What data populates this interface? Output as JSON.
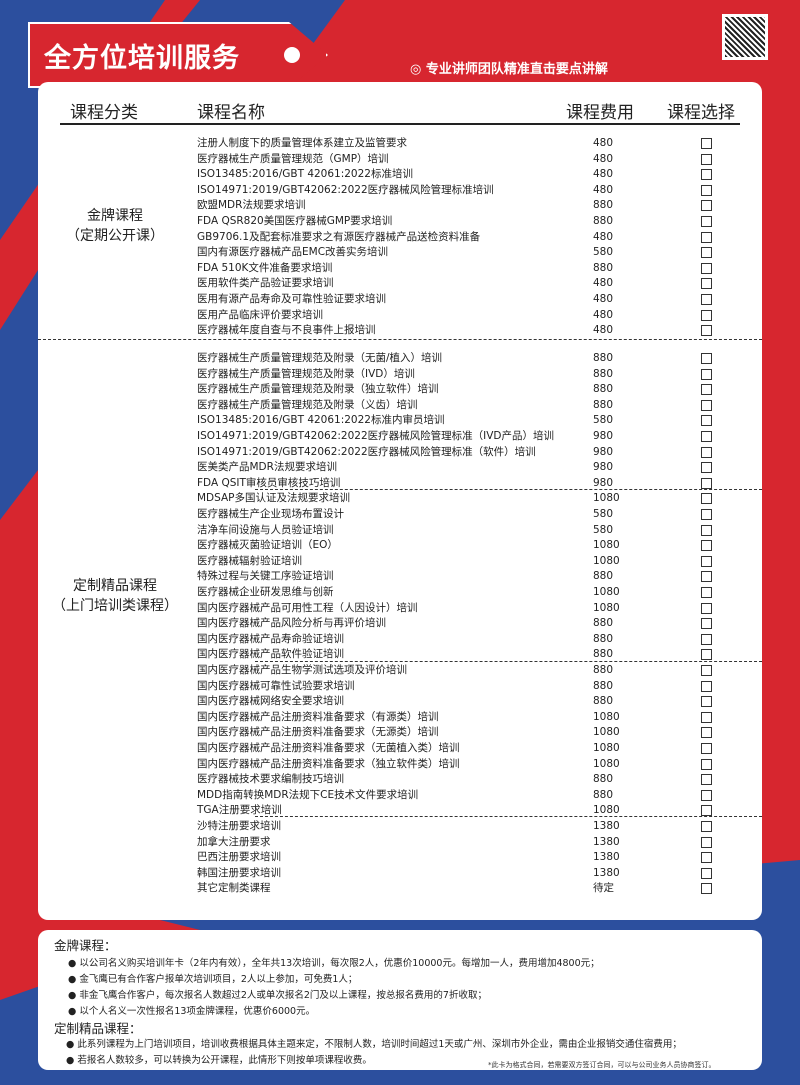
{
  "header": {
    "title": "全方位培训服务",
    "slogan": "◎ 专业讲师团队精准直击要点讲解",
    "qr_code": "qr-code"
  },
  "columns": {
    "category": "课程分类",
    "name": "课程名称",
    "fee": "课程费用",
    "select": "课程选择"
  },
  "colors": {
    "red": "#d7262f",
    "blue": "#2c4f9e"
  },
  "sections": [
    {
      "category": "金牌课程",
      "category_sub": "（定期公开课）",
      "courses": [
        {
          "name": "注册人制度下的质量管理体系建立及监管要求",
          "fee": "480"
        },
        {
          "name": "医疗器械生产质量管理规范（GMP）培训",
          "fee": "480"
        },
        {
          "name": "ISO13485:2016/GBT 42061:2022标准培训",
          "fee": "480"
        },
        {
          "name": "ISO14971:2019/GBT42062:2022医疗器械风险管理标准培训",
          "fee": "480"
        },
        {
          "name": "欧盟MDR法规要求培训",
          "fee": "880"
        },
        {
          "name": "FDA QSR820美国医疗器械GMP要求培训",
          "fee": "880"
        },
        {
          "name": "GB9706.1及配套标准要求之有源医疗器械产品送检资料准备",
          "fee": "480"
        },
        {
          "name": "国内有源医疗器械产品EMC改善实务培训",
          "fee": "580"
        },
        {
          "name": "FDA 510K文件准备要求培训",
          "fee": "880"
        },
        {
          "name": "医用软件类产品验证要求培训",
          "fee": "480"
        },
        {
          "name": "医用有源产品寿命及可靠性验证要求培训",
          "fee": "480"
        },
        {
          "name": "医用产品临床评价要求培训",
          "fee": "480"
        },
        {
          "name": "医疗器械年度自查与不良事件上报培训",
          "fee": "480"
        }
      ]
    },
    {
      "category": "定制精品课程",
      "category_sub": "（上门培训类课程）",
      "courses": [
        {
          "name": "医疗器械生产质量管理规范及附录（无菌/植入）培训",
          "fee": "880"
        },
        {
          "name": "医疗器械生产质量管理规范及附录（IVD）培训",
          "fee": "880"
        },
        {
          "name": "医疗器械生产质量管理规范及附录（独立软件）培训",
          "fee": "880"
        },
        {
          "name": "医疗器械生产质量管理规范及附录（义齿）培训",
          "fee": "880"
        },
        {
          "name": "ISO13485:2016/GBT 42061:2022标准内审员培训",
          "fee": "580"
        },
        {
          "name": "ISO14971:2019/GBT42062:2022医疗器械风险管理标准（IVD产品）培训",
          "fee": "980"
        },
        {
          "name": "ISO14971:2019/GBT42062:2022医疗器械风险管理标准（软件）培训",
          "fee": "980"
        },
        {
          "name": "医美类产品MDR法规要求培训",
          "fee": "980"
        },
        {
          "name": "FDA QSIT审核员审核技巧培训",
          "fee": "980"
        },
        {
          "name": "MDSAP多国认证及法规要求培训",
          "fee": "1080"
        },
        {
          "name": "医疗器械生产企业现场布置设计",
          "fee": "580"
        },
        {
          "name": "洁净车间设施与人员验证培训",
          "fee": "580"
        },
        {
          "name": "医疗器械灭菌验证培训（EO）",
          "fee": "1080"
        },
        {
          "name": "医疗器械辐射验证培训",
          "fee": "1080"
        },
        {
          "name": "特殊过程与关键工序验证培训",
          "fee": "880"
        },
        {
          "name": "医疗器械企业研发思维与创新",
          "fee": "1080"
        },
        {
          "name": "国内医疗器械产品可用性工程（人因设计）培训",
          "fee": "1080"
        },
        {
          "name": "国内医疗器械产品风险分析与再评价培训",
          "fee": "880"
        },
        {
          "name": "国内医疗器械产品寿命验证培训",
          "fee": "880"
        },
        {
          "name": "国内医疗器械产品软件验证培训",
          "fee": "880"
        },
        {
          "name": "国内医疗器械产品生物学测试选项及评价培训",
          "fee": "880"
        },
        {
          "name": "国内医疗器械可靠性试验要求培训",
          "fee": "880"
        },
        {
          "name": "国内医疗器械网络安全要求培训",
          "fee": "880"
        },
        {
          "name": "国内医疗器械产品注册资料准备要求（有源类）培训",
          "fee": "1080"
        },
        {
          "name": "国内医疗器械产品注册资料准备要求（无源类）培训",
          "fee": "1080"
        },
        {
          "name": "国内医疗器械产品注册资料准备要求（无菌植入类）培训",
          "fee": "1080"
        },
        {
          "name": "国内医疗器械产品注册资料准备要求（独立软件类）培训",
          "fee": "1080"
        },
        {
          "name": "医疗器械技术要求编制技巧培训",
          "fee": "880"
        },
        {
          "name": "MDD指南转换MDR法规下CE技术文件要求培训",
          "fee": "880"
        },
        {
          "name": "TGA注册要求培训",
          "fee": "1080"
        },
        {
          "name": "沙特注册要求培训",
          "fee": "1380"
        },
        {
          "name": "加拿大注册要求",
          "fee": "1380"
        },
        {
          "name": "巴西注册要求培训",
          "fee": "1380"
        },
        {
          "name": "韩国注册要求培训",
          "fee": "1380"
        },
        {
          "name": "其它定制类课程",
          "fee": "待定"
        }
      ]
    }
  ],
  "notes": {
    "gold_title": "金牌课程：",
    "gold_items": [
      "以公司名义购买培训年卡（2年内有效），全年共13次培训，每次限2人，优惠价10000元。每增加一人，费用增加4800元；",
      "金飞鹰已有合作客户报单次培训项目，2人以上参加，可免费1人；",
      "非金飞鹰合作客户，每次报名人数超过2人或单次报名2门及以上课程，按总报名费用的7折收取；",
      "以个人名义一次性报名13项金牌课程，优惠价6000元。"
    ],
    "custom_title": "定制精品课程：",
    "custom_items": [
      "此系列课程为上门培训项目，培训收费根据具体主题来定，不限制人数，培训时间超过1天或广州、深圳市外企业，需由企业报销交通住宿费用；",
      "若报名人数较多，可以转换为公开课程，此情形下则按单项课程收费。"
    ],
    "footnote": "*此卡为格式合同，若需要双方签订合同，可以与公司业务人员协商签订。"
  }
}
